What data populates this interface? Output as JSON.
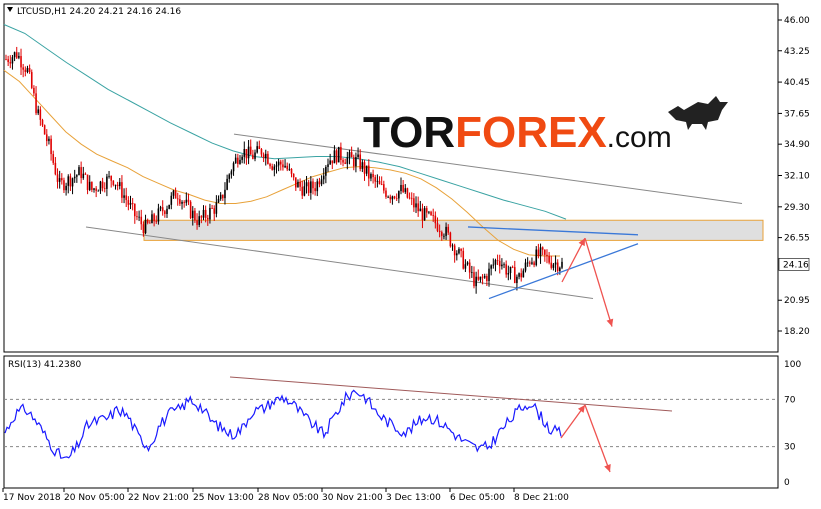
{
  "header": {
    "symbol_line": "LTCUSD,H1  24.20 24.21 24.16 24.16",
    "rsi_label": "RSI(13) 41.2380"
  },
  "logo": {
    "part1": "TOR",
    "part2": "FOREX",
    "part3": ".com"
  },
  "colors": {
    "up_candle": "#000000",
    "down_candle": "#e00000",
    "ma_fast": "#e8a23a",
    "ma_slow": "#3aa3a3",
    "channel": "#888888",
    "zone_fill": "#d9d9d9",
    "zone_border": "#e8a23a",
    "triangle": "#3a78d8",
    "arrow": "#ef5350",
    "rsi_line": "#1a1aff",
    "rsi_trend": "#a05a5a",
    "logo_accent": "#f04a12"
  },
  "chart_data": [
    {
      "type": "candlestick",
      "title": "LTCUSD,H1",
      "ylim": [
        18.2,
        46.0
      ],
      "y_ticks": [
        46.0,
        43.25,
        40.45,
        37.65,
        34.9,
        32.1,
        29.3,
        26.55,
        20.95,
        18.2
      ],
      "y_tick_labels": [
        "46.00",
        "43.25",
        "40.45",
        "37.65",
        "34.90",
        "32.10",
        "29.30",
        "26.55",
        "20.95",
        "18.20"
      ],
      "current_price_label": "24.16",
      "last_bar": {
        "open": 24.2,
        "high": 24.21,
        "low": 24.16,
        "close": 24.16
      },
      "x_tick_labels": [
        "17 Nov 2018",
        "20 Nov 05:00",
        "22 Nov 21:00",
        "25 Nov 13:00",
        "28 Nov 05:00",
        "30 Nov 21:00",
        "3 Dec 13:00",
        "6 Dec 05:00",
        "8 Dec 21:00"
      ],
      "close_path": [
        42.5,
        43.0,
        41.5,
        37.5,
        34.8,
        31.2,
        31.8,
        32.4,
        30.8,
        31.5,
        31.9,
        30.4,
        28.6,
        27.4,
        28.3,
        29.4,
        30.6,
        29.2,
        28.0,
        28.8,
        29.6,
        32.6,
        34.4,
        33.8,
        34.4,
        33.0,
        33.2,
        31.4,
        30.8,
        31.2,
        33.4,
        34.0,
        33.6,
        33.3,
        32.0,
        31.0,
        30.4,
        30.8,
        29.6,
        28.6,
        28.0,
        27.2,
        25.6,
        24.0,
        22.4,
        23.2,
        24.8,
        23.4,
        23.0,
        24.6,
        25.0,
        24.4,
        24.16
      ],
      "series": [
        {
          "name": "ma_fast",
          "values": [
            41.5,
            40.5,
            39.0,
            37.5,
            36.0,
            34.9,
            34.0,
            33.4,
            32.8,
            32.0,
            31.4,
            30.8,
            30.4,
            29.9,
            29.6,
            29.6,
            29.8,
            30.2,
            30.8,
            31.4,
            32.0,
            32.4,
            32.8,
            32.9,
            32.8,
            32.6,
            32.3,
            31.8,
            31.0,
            30.0,
            28.8,
            27.5,
            26.3,
            25.5,
            25.0,
            24.9,
            24.9
          ]
        },
        {
          "name": "ma_slow",
          "values": [
            45.6,
            44.8,
            43.5,
            42.2,
            41.0,
            39.8,
            38.8,
            37.8,
            36.8,
            35.9,
            35.0,
            34.3,
            33.8,
            33.6,
            33.7,
            33.8,
            33.8,
            33.6,
            33.3,
            32.9,
            32.3,
            31.7,
            31.1,
            30.5,
            29.9,
            29.4,
            28.9,
            28.2
          ]
        }
      ],
      "annotations": {
        "resistance_zone": [
          26.3,
          28.1
        ],
        "channel_upper": [
          [
            35.8,
            29.6
          ]
        ],
        "channel_lower": [
          [
            27.5,
            21.1
          ]
        ],
        "triangle_upper": [
          [
            27.5,
            26.8
          ]
        ],
        "triangle_lower": [
          [
            21.1,
            26.0
          ]
        ],
        "forecast_arrow_up_target": 26.5,
        "forecast_arrow_down_target": 18.6
      }
    },
    {
      "type": "line",
      "title": "RSI(13) 41.2380",
      "ylim": [
        0,
        100
      ],
      "y_ticks": [
        0,
        30,
        70,
        100
      ],
      "y_tick_labels": [
        "0",
        "30",
        "70",
        "100"
      ],
      "levels": [
        30,
        70
      ],
      "rsi_path": [
        42,
        58,
        62,
        52,
        38,
        25,
        18,
        30,
        48,
        52,
        54,
        62,
        55,
        38,
        30,
        48,
        58,
        62,
        70,
        64,
        52,
        46,
        40,
        45,
        60,
        62,
        68,
        72,
        66,
        56,
        48,
        40,
        56,
        70,
        78,
        72,
        60,
        52,
        46,
        42,
        50,
        56,
        52,
        46,
        38,
        32,
        28,
        30,
        42,
        52,
        62,
        68,
        56,
        44,
        41.24
      ],
      "series": [
        {
          "name": "RSI(13)",
          "values": [
            41.24
          ]
        }
      ]
    }
  ]
}
